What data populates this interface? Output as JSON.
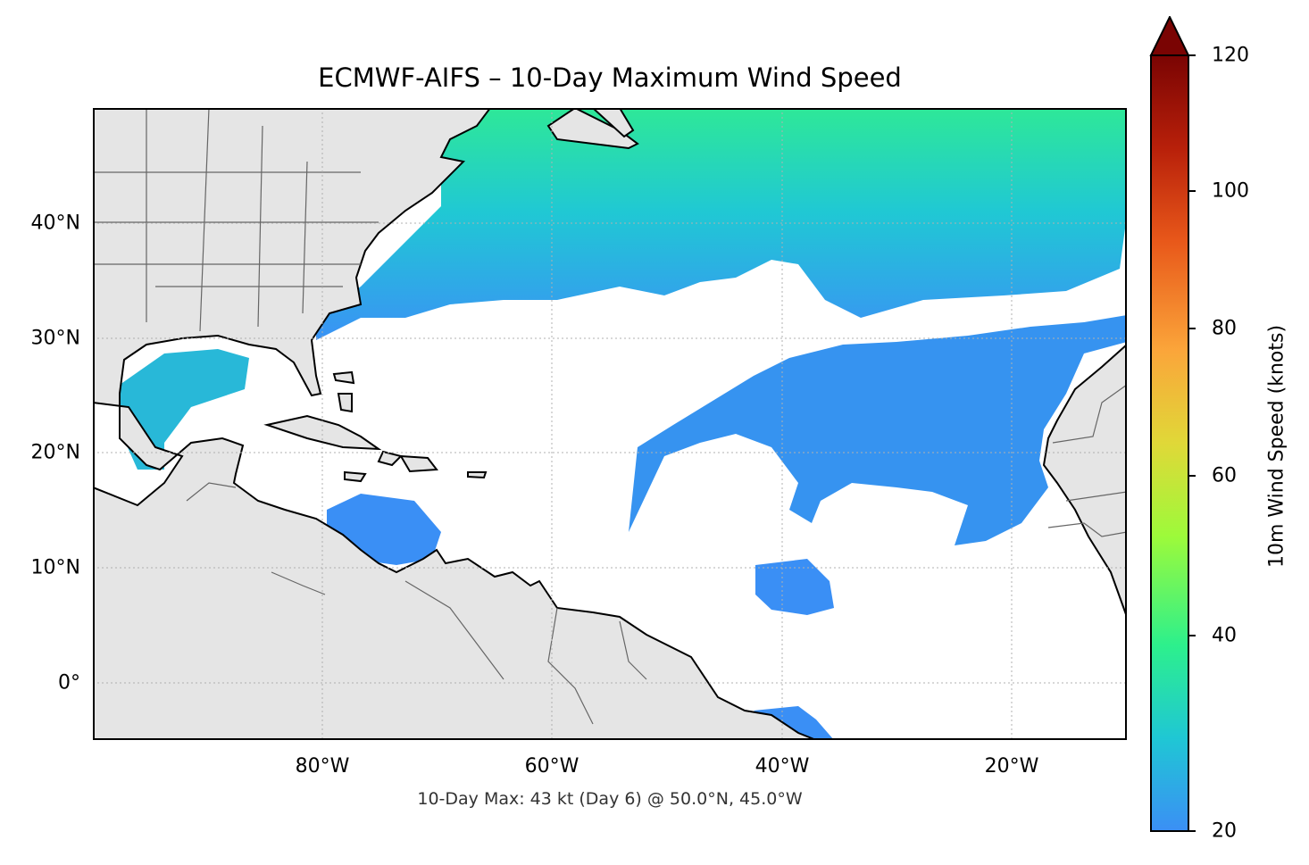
{
  "title": "ECMWF-AIFS – 10-Day Maximum Wind Speed",
  "footnote": "10-Day Max: 43 kt (Day 6) @ 50.0°N, 45.0°W",
  "colorbar": {
    "label": "10m Wind Speed (knots)",
    "min": 20,
    "max": 120,
    "ticks": [
      "120",
      "100",
      "80",
      "60",
      "40",
      "20"
    ],
    "extend": "max",
    "colors": [
      "#3b8ff5",
      "#1fc7d4",
      "#2df08c",
      "#9dfa3a",
      "#e0d838",
      "#fba53a",
      "#e8581a",
      "#b8200a",
      "#7a0403"
    ]
  },
  "axes": {
    "x_ticks": [
      "80°W",
      "60°W",
      "40°W",
      "20°W"
    ],
    "y_ticks": [
      "40°N",
      "30°N",
      "20°N",
      "10°N",
      "0°"
    ],
    "lon_range": [
      -100,
      -10
    ],
    "lat_range": [
      -5,
      50
    ],
    "grid": true
  },
  "map": {
    "land_color": "#e5e5e5",
    "coast_color": "#000000",
    "border_color": "#666666",
    "max_point": {
      "lat": 50.0,
      "lon": -45.0,
      "value_kt": 43,
      "day": 6
    }
  }
}
